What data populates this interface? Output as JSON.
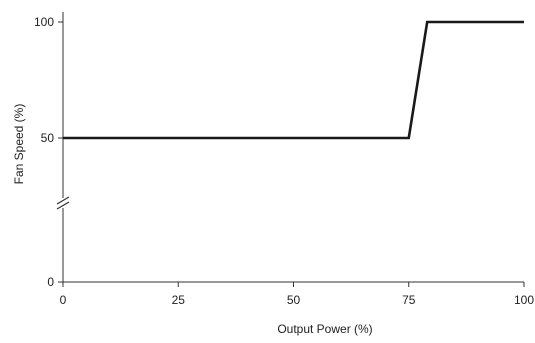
{
  "chart_data": {
    "type": "line",
    "title": "",
    "xlabel": "Output Power (%)",
    "ylabel": "Fan Speed (%)",
    "xlim": [
      0,
      100
    ],
    "ylim_display": [
      0,
      100
    ],
    "x_ticks": [
      0,
      25,
      50,
      75,
      100
    ],
    "y_ticks": [
      0,
      50,
      100
    ],
    "y_axis_break": true,
    "grid": false,
    "legend": "none",
    "series": [
      {
        "x": [
          0,
          75,
          79,
          100
        ],
        "y": [
          50,
          50,
          100,
          100
        ],
        "color": "#1a1a1a"
      }
    ]
  }
}
